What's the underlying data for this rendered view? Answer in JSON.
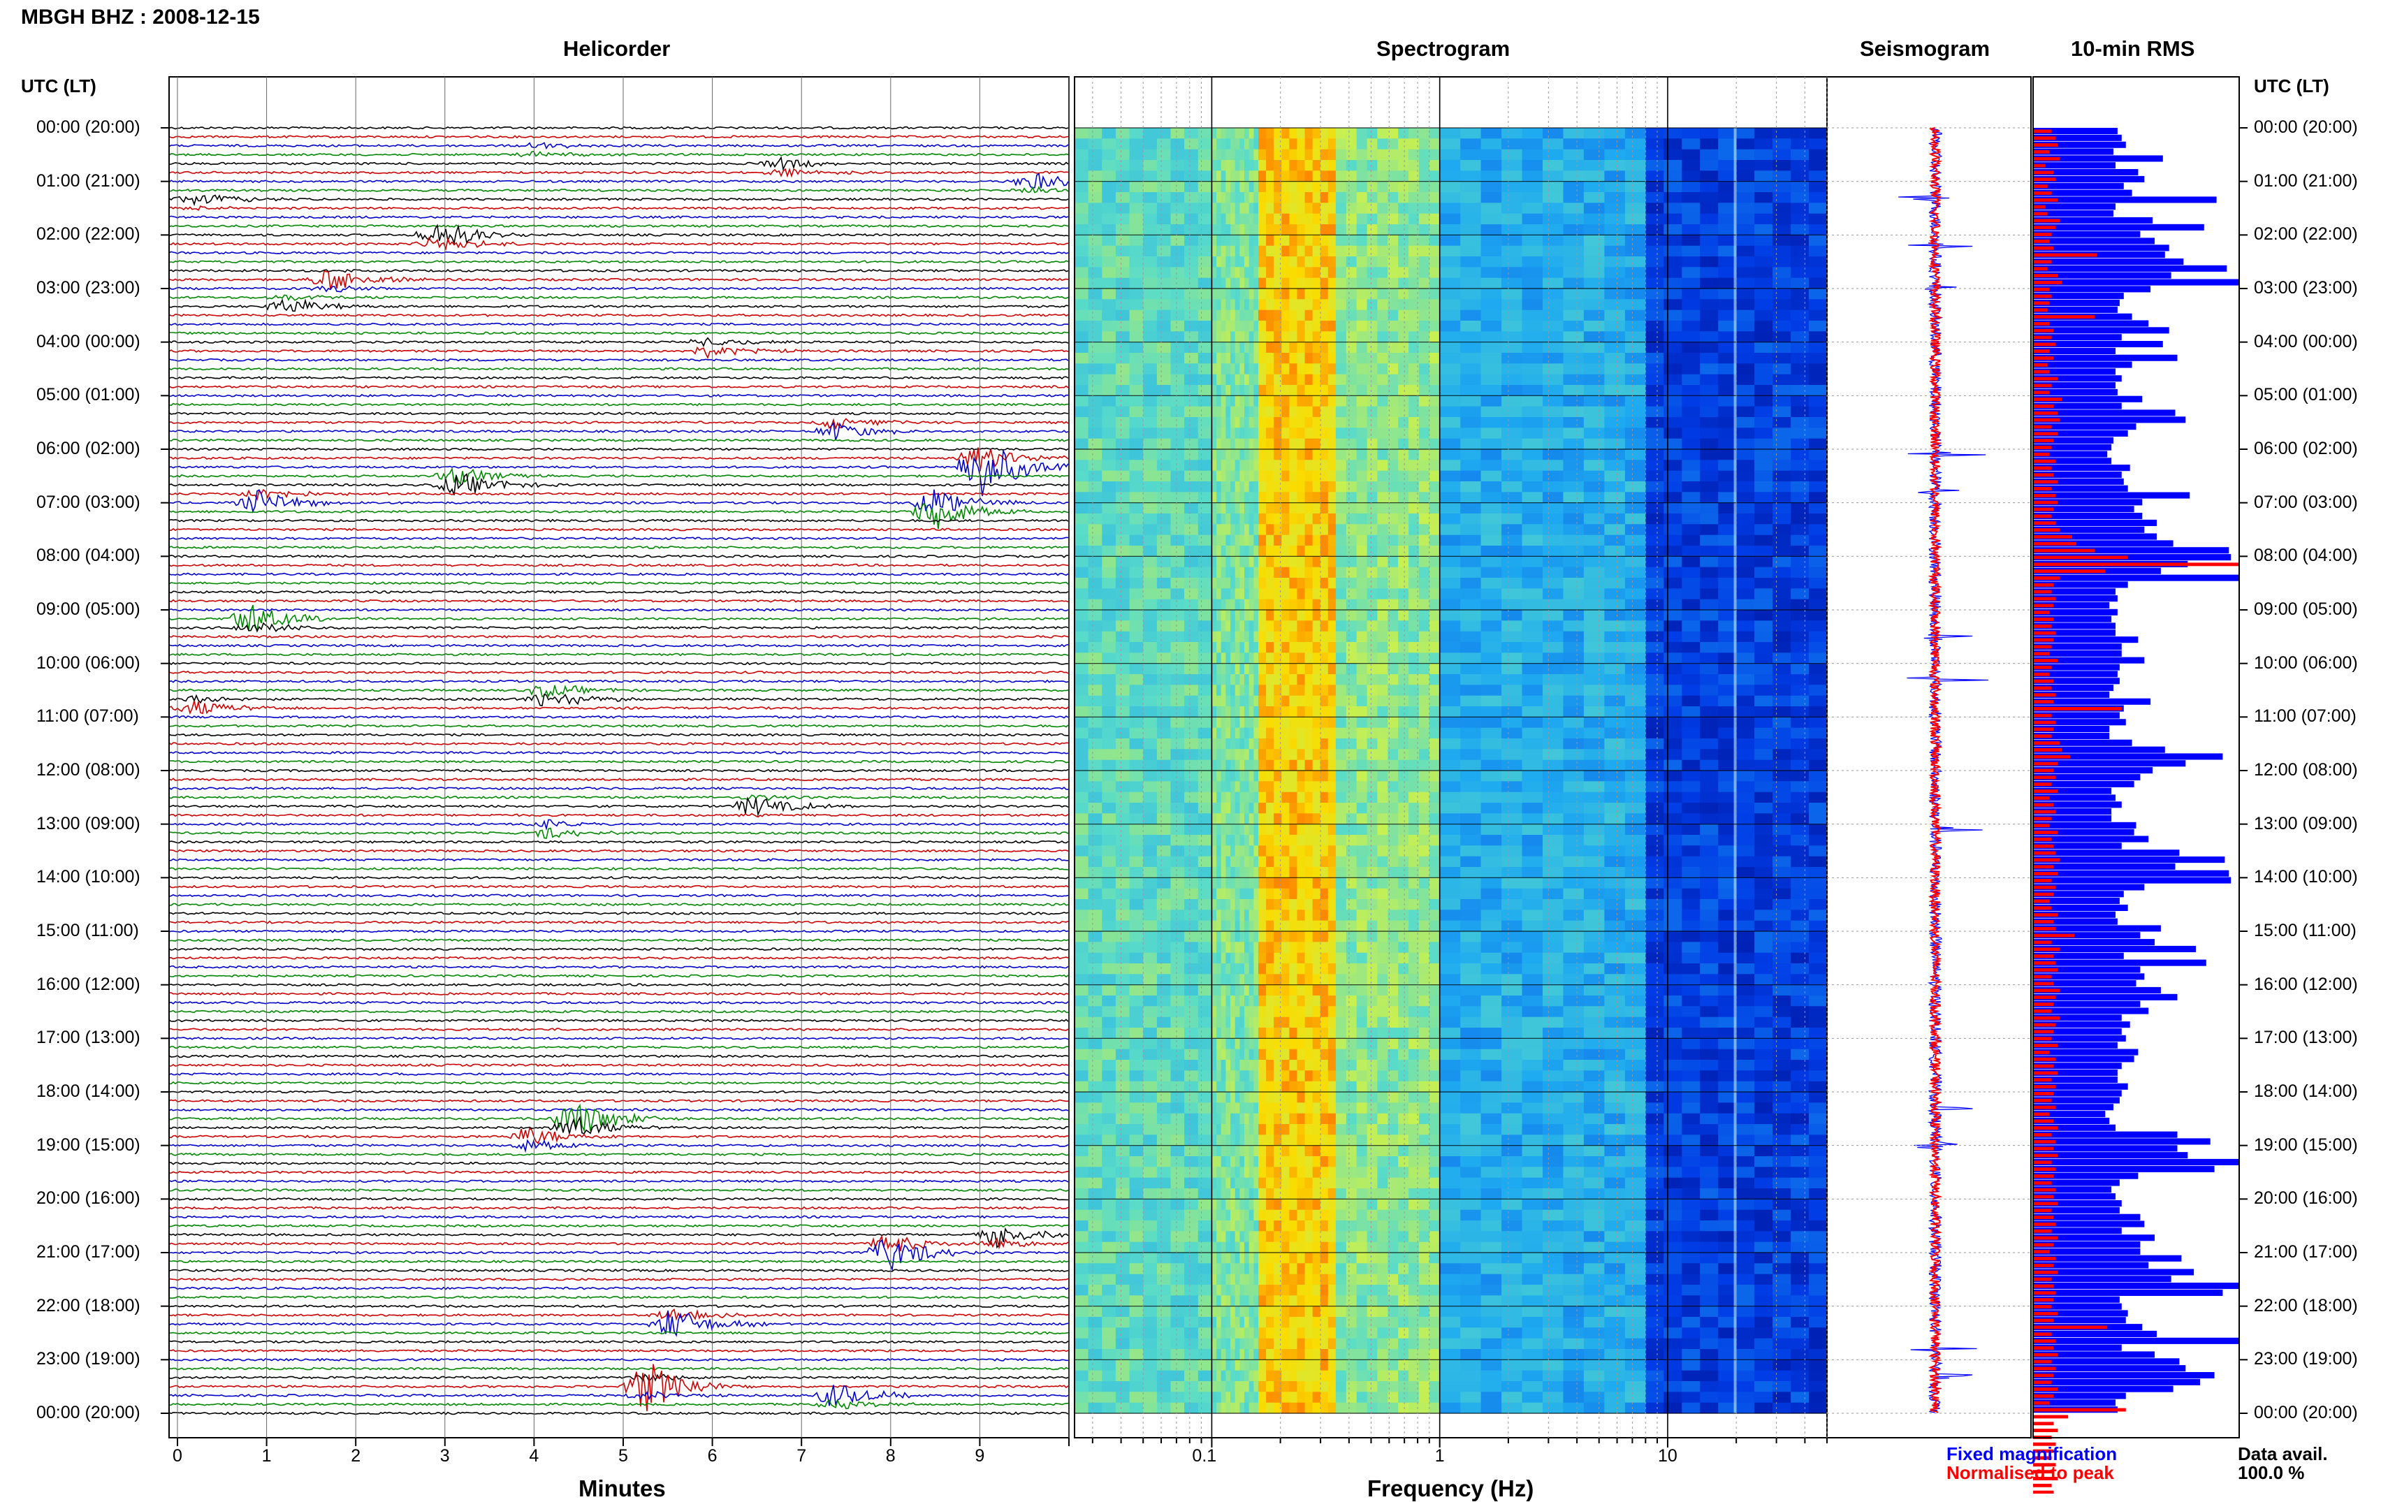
{
  "title": "MBGH BHZ : 2008-12-15",
  "headers": {
    "helicorder": "Helicorder",
    "spectrogram": "Spectrogram",
    "seismogram": "Seismogram",
    "rms": "10-min RMS"
  },
  "utc_label": "UTC (LT)",
  "time_labels": [
    "00:00 (20:00)",
    "01:00 (21:00)",
    "02:00 (22:00)",
    "03:00 (23:00)",
    "04:00 (00:00)",
    "05:00 (01:00)",
    "06:00 (02:00)",
    "07:00 (03:00)",
    "08:00 (04:00)",
    "09:00 (05:00)",
    "10:00 (06:00)",
    "11:00 (07:00)",
    "12:00 (08:00)",
    "13:00 (09:00)",
    "14:00 (10:00)",
    "15:00 (11:00)",
    "16:00 (12:00)",
    "17:00 (13:00)",
    "18:00 (14:00)",
    "19:00 (15:00)",
    "20:00 (16:00)",
    "21:00 (17:00)",
    "22:00 (18:00)",
    "23:00 (19:00)",
    "00:00 (20:00)"
  ],
  "x_axis_minutes": {
    "label": "Minutes",
    "ticks": [
      "0",
      "1",
      "2",
      "3",
      "4",
      "5",
      "6",
      "7",
      "8",
      "9"
    ]
  },
  "x_axis_frequency": {
    "label": "Frequency (Hz)",
    "ticks": [
      "0.1",
      "1",
      "10"
    ]
  },
  "legend": {
    "fixed": "Fixed magnification",
    "normalised": "Normalised to peak"
  },
  "data_avail": {
    "label": "Data avail.",
    "value": "100.0 %"
  },
  "colors": {
    "trace_cycle": [
      "#000000",
      "#cc0000",
      "#0000cc",
      "#008800"
    ],
    "fixed": "#0000ff",
    "normalised": "#ff0000"
  },
  "chart_data": [
    {
      "type": "line",
      "title": "Helicorder",
      "xlabel": "Minutes",
      "xlim": [
        0,
        10
      ],
      "rows_per_hour": 6,
      "hours": 24,
      "events": [
        {
          "t_hours": 0.42,
          "minute": 4.1,
          "amp": 1.2
        },
        {
          "t_hours": 0.75,
          "minute": 6.8,
          "amp": 2.0
        },
        {
          "t_hours": 1.05,
          "minute": 9.6,
          "amp": 2.5
        },
        {
          "t_hours": 1.35,
          "minute": 0.3,
          "amp": 1.5
        },
        {
          "t_hours": 2.05,
          "minute": 3.0,
          "amp": 4.0
        },
        {
          "t_hours": 2.85,
          "minute": 1.8,
          "amp": 3.0
        },
        {
          "t_hours": 3.3,
          "minute": 1.3,
          "amp": 2.2
        },
        {
          "t_hours": 4.1,
          "minute": 6.0,
          "amp": 2.0
        },
        {
          "t_hours": 5.6,
          "minute": 7.4,
          "amp": 3.0
        },
        {
          "t_hours": 6.3,
          "minute": 9.0,
          "amp": 8.0
        },
        {
          "t_hours": 6.6,
          "minute": 3.2,
          "amp": 4.0
        },
        {
          "t_hours": 6.95,
          "minute": 1.0,
          "amp": 3.5
        },
        {
          "t_hours": 7.1,
          "minute": 8.5,
          "amp": 6.0
        },
        {
          "t_hours": 9.2,
          "minute": 0.9,
          "amp": 4.0
        },
        {
          "t_hours": 10.6,
          "minute": 4.2,
          "amp": 3.0
        },
        {
          "t_hours": 10.8,
          "minute": 0.3,
          "amp": 2.0
        },
        {
          "t_hours": 12.65,
          "minute": 6.5,
          "amp": 2.5
        },
        {
          "t_hours": 13.1,
          "minute": 4.2,
          "amp": 1.8
        },
        {
          "t_hours": 18.55,
          "minute": 4.5,
          "amp": 5.5
        },
        {
          "t_hours": 18.9,
          "minute": 4.0,
          "amp": 3.0
        },
        {
          "t_hours": 20.95,
          "minute": 8.0,
          "amp": 5.0
        },
        {
          "t_hours": 20.7,
          "minute": 9.2,
          "amp": 3.0
        },
        {
          "t_hours": 22.3,
          "minute": 5.6,
          "amp": 4.0
        },
        {
          "t_hours": 23.5,
          "minute": 5.3,
          "amp": 5.5
        },
        {
          "t_hours": 23.7,
          "minute": 7.4,
          "amp": 3.0
        }
      ]
    },
    {
      "type": "heatmap",
      "title": "Spectrogram",
      "xlabel": "Frequency (Hz)",
      "x_scale": "log",
      "xlim": [
        0.025,
        50
      ],
      "ylim_hours": [
        0,
        24
      ],
      "bands": [
        {
          "f": [
            0.025,
            0.1
          ],
          "level": 0.55
        },
        {
          "f": [
            0.1,
            0.16
          ],
          "level": 0.6
        },
        {
          "f": [
            0.16,
            0.35
          ],
          "level": 0.85
        },
        {
          "f": [
            0.35,
            1.0
          ],
          "level": 0.62
        },
        {
          "f": [
            1.0,
            8.0
          ],
          "level": 0.4
        },
        {
          "f": [
            8.0,
            50.0
          ],
          "level": 0.18
        }
      ]
    },
    {
      "type": "line",
      "title": "Seismogram",
      "series": [
        {
          "name": "Fixed magnification"
        },
        {
          "name": "Normalised to peak"
        }
      ],
      "spikes_hours": [
        1.3,
        2.2,
        3.0,
        6.1,
        6.8,
        9.5,
        10.3,
        13.1,
        18.3,
        19.0,
        22.8,
        23.3
      ]
    },
    {
      "type": "bar",
      "title": "10-min RMS",
      "fixed": [
        0.41,
        0.43,
        0.45,
        0.39,
        0.63,
        0.4,
        0.51,
        0.54,
        0.44,
        0.48,
        0.89,
        0.4,
        0.39,
        0.58,
        0.83,
        0.52,
        0.59,
        0.66,
        0.64,
        0.73,
        0.94,
        0.67,
        1.0,
        0.57,
        0.44,
        0.42,
        0.41,
        0.48,
        0.56,
        0.66,
        0.43,
        0.63,
        0.4,
        0.7,
        0.48,
        0.4,
        0.43,
        0.4,
        0.41,
        0.53,
        0.43,
        0.69,
        0.74,
        0.5,
        0.46,
        0.39,
        0.38,
        0.36,
        0.38,
        0.47,
        0.43,
        0.44,
        0.46,
        0.76,
        0.53,
        0.49,
        0.53,
        0.6,
        0.54,
        0.6,
        0.68,
        0.95,
        0.96,
        0.75,
        0.62,
        1.0,
        0.46,
        0.4,
        0.41,
        0.37,
        0.41,
        0.38,
        0.4,
        0.4,
        0.51,
        0.43,
        0.43,
        0.54,
        0.42,
        0.41,
        0.42,
        0.39,
        0.37,
        0.57,
        0.44,
        0.42,
        0.45,
        0.37,
        0.37,
        0.48,
        0.64,
        0.92,
        0.74,
        0.58,
        0.52,
        0.49,
        0.38,
        0.4,
        0.43,
        0.38,
        0.38,
        0.5,
        0.49,
        0.56,
        0.43,
        0.71,
        0.93,
        0.69,
        0.95,
        0.96,
        0.54,
        0.44,
        0.42,
        0.46,
        0.4,
        0.41,
        0.62,
        0.52,
        0.59,
        0.79,
        0.44,
        0.84,
        0.52,
        0.54,
        0.5,
        0.62,
        0.7,
        0.52,
        0.56,
        0.43,
        0.47,
        0.43,
        0.45,
        0.41,
        0.51,
        0.49,
        0.43,
        0.41,
        0.41,
        0.46,
        0.43,
        0.42,
        0.39,
        0.35,
        0.37,
        0.4,
        0.7,
        0.86,
        0.7,
        0.75,
        1.0,
        0.88,
        0.51,
        0.42,
        0.38,
        0.4,
        0.43,
        0.42,
        0.52,
        0.54,
        0.43,
        0.59,
        0.52,
        0.52,
        0.72,
        0.56,
        0.78,
        0.67,
        1.0,
        0.92,
        0.42,
        0.43,
        0.46,
        0.45,
        0.53,
        0.6,
        1.0,
        0.43,
        0.59,
        0.71,
        0.74,
        0.88,
        0.81,
        0.68,
        0.45,
        0.4,
        0.41
      ],
      "normalised": [
        0.09,
        0.11,
        0.12,
        0.08,
        0.13,
        0.06,
        0.1,
        0.11,
        0.07,
        0.09,
        0.12,
        0.06,
        0.07,
        0.13,
        0.11,
        0.09,
        0.08,
        0.1,
        0.31,
        0.09,
        0.07,
        0.12,
        0.14,
        0.08,
        0.09,
        0.08,
        0.07,
        0.3,
        0.08,
        0.1,
        0.09,
        0.11,
        0.08,
        0.1,
        0.07,
        0.08,
        0.12,
        0.09,
        0.08,
        0.14,
        0.1,
        0.12,
        0.13,
        0.09,
        0.12,
        0.1,
        0.09,
        0.08,
        0.11,
        0.09,
        0.1,
        0.12,
        0.09,
        0.11,
        0.12,
        0.1,
        0.09,
        0.11,
        0.13,
        0.19,
        0.21,
        0.3,
        0.46,
        1.0,
        0.35,
        0.13,
        0.1,
        0.09,
        0.11,
        0.1,
        0.08,
        0.1,
        0.09,
        0.11,
        0.1,
        0.09,
        0.08,
        0.12,
        0.09,
        0.08,
        0.1,
        0.09,
        0.11,
        0.1,
        0.43,
        0.09,
        0.11,
        0.1,
        0.09,
        0.13,
        0.14,
        0.18,
        0.12,
        0.1,
        0.11,
        0.09,
        0.12,
        0.08,
        0.1,
        0.11,
        0.09,
        0.08,
        0.12,
        0.09,
        0.1,
        0.11,
        0.13,
        0.1,
        0.12,
        0.09,
        0.11,
        0.1,
        0.08,
        0.09,
        0.12,
        0.1,
        0.11,
        0.2,
        0.09,
        0.13,
        0.1,
        0.11,
        0.12,
        0.09,
        0.1,
        0.13,
        0.11,
        0.1,
        0.09,
        0.13,
        0.11,
        0.1,
        0.09,
        0.12,
        0.08,
        0.11,
        0.1,
        0.12,
        0.09,
        0.11,
        0.1,
        0.09,
        0.11,
        0.08,
        0.1,
        0.12,
        0.09,
        0.11,
        0.1,
        0.12,
        0.09,
        0.11,
        0.1,
        0.09,
        0.11,
        0.1,
        0.12,
        0.09,
        0.1,
        0.11,
        0.09,
        0.12,
        0.1,
        0.08,
        0.11,
        0.1,
        0.12,
        0.09,
        0.1,
        0.11,
        0.1,
        0.09,
        0.12,
        0.1,
        0.36,
        0.09,
        0.11,
        0.1,
        0.12,
        0.09,
        0.11,
        0.1,
        0.09,
        0.12,
        0.1,
        0.08,
        0.45,
        0.17,
        0.1,
        0.12,
        0.09,
        0.11,
        0.1,
        0.09,
        0.11,
        0.1,
        0.12,
        0.09,
        0.1,
        0.11,
        0.1,
        0.09
      ]
    }
  ]
}
